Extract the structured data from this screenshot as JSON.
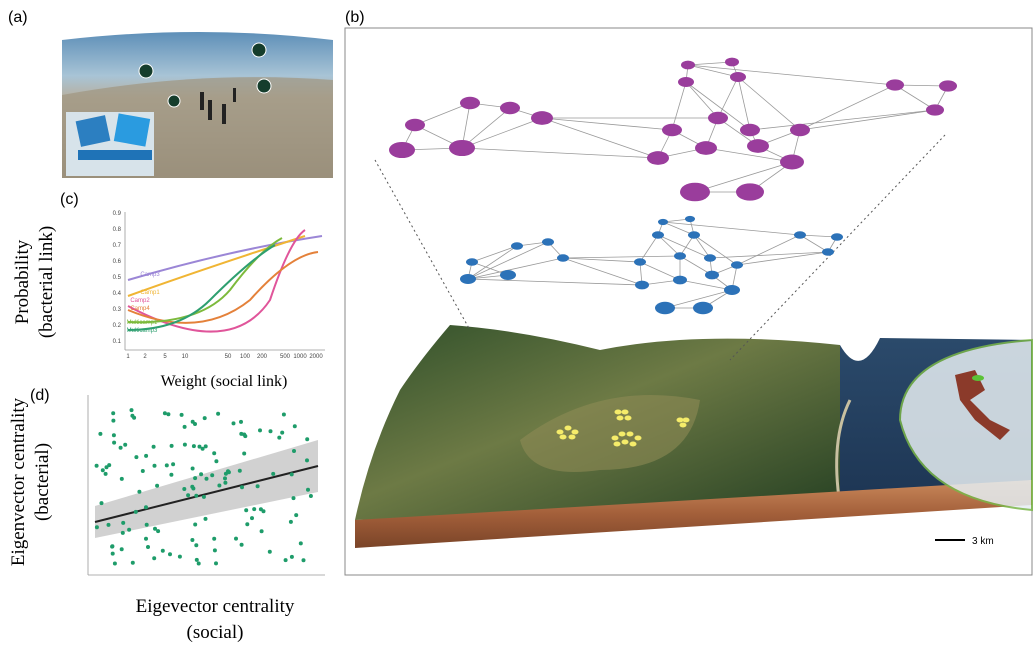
{
  "panels": {
    "a": {
      "label": "(a)"
    },
    "b": {
      "label": "(b)",
      "scale_bar": "3 km"
    },
    "c": {
      "label": "(c)",
      "y_axis_label": [
        "Probability",
        "(bacterial link)"
      ],
      "x_axis_label": "Weight (social link)",
      "x_tick_labels": [
        "1",
        "2",
        "5",
        "10",
        "50",
        "100",
        "200",
        "500",
        "1000",
        "2000"
      ],
      "y_tick_labels": [
        "0.1",
        "0.2",
        "0.3",
        "0.4",
        "0.5",
        "0.6",
        "0.7",
        "0.8",
        "0.9"
      ],
      "curve_labels": [
        "Camp3",
        "Camp1",
        "Camp2",
        "Camp4",
        "Multicamp1",
        "Multicamp3"
      ]
    },
    "d": {
      "label": "(d)",
      "y_axis_label": [
        "Eigenvector centrality",
        "(bacterial)"
      ],
      "x_axis_label": [
        "Eigevector centrality",
        "(social)"
      ]
    }
  }
}
